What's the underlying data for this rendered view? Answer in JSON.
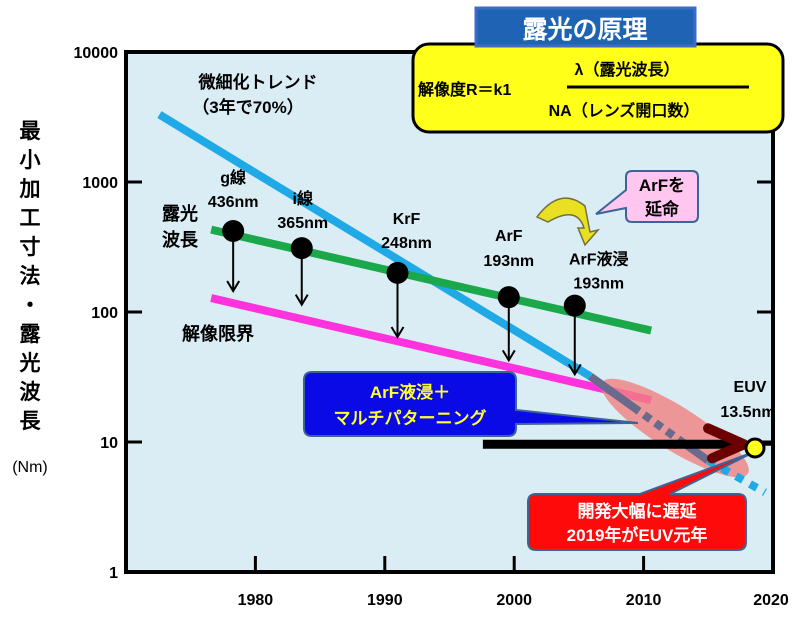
{
  "chart_data": {
    "type": "line",
    "title": "露光の原理",
    "formula": {
      "lhs": "解像度R＝k1",
      "numerator": "λ（露光波長）",
      "denominator": "NA（レンズ開口数）"
    },
    "ylabel_chars": [
      "最",
      "小",
      "加",
      "工",
      "寸",
      "法",
      "・",
      "露",
      "光",
      "波",
      "長"
    ],
    "ylabel_unit": "(Nm)",
    "yscale": "log",
    "ylim": [
      1,
      10000
    ],
    "xlim": [
      1970,
      2020
    ],
    "y_ticks": [
      {
        "value": 10000,
        "label": "10000"
      },
      {
        "value": 1000,
        "label": "1000"
      },
      {
        "value": 100,
        "label": "100"
      },
      {
        "value": 10,
        "label": "10"
      },
      {
        "value": 1,
        "label": "1"
      }
    ],
    "x_ticks": [
      {
        "value": 1980,
        "label": "1980"
      },
      {
        "value": 1990,
        "label": "1990"
      },
      {
        "value": 2000,
        "label": "2000"
      },
      {
        "value": 2010,
        "label": "2010"
      },
      {
        "value": 2020,
        "label": "2020"
      }
    ],
    "series": [
      {
        "name": "微細化トレンド（3年で70%）",
        "color": "#1fa9e6",
        "points": [
          [
            1973.2,
            3300
          ],
          [
            2006.5,
            32
          ]
        ],
        "extension_dashed": [
          [
            2006.5,
            32
          ],
          [
            2015.6,
            7.2
          ]
        ],
        "extension_dotted": [
          [
            2015.6,
            7.2
          ],
          [
            2020,
            4.1
          ]
        ]
      },
      {
        "name": "露光波長",
        "color": "#1aa84a",
        "points": [
          [
            1977.2,
            430
          ],
          [
            2011.2,
            72
          ]
        ]
      },
      {
        "name": "解像限界",
        "color": "#ff33dd",
        "points": [
          [
            1977.2,
            128
          ],
          [
            2011.2,
            21
          ]
        ]
      }
    ],
    "light_sources": [
      {
        "name": "g線",
        "wavelength": "436nm",
        "year": 1978.9,
        "value": 420,
        "limit": 140
      },
      {
        "name": "i線",
        "wavelength": "365nm",
        "year": 1984.2,
        "value": 310,
        "limit": 110
      },
      {
        "name": "KrF",
        "wavelength": "248nm",
        "year": 1991.6,
        "value": 200,
        "limit": 62
      },
      {
        "name": "ArF",
        "wavelength": "193nm",
        "year": 2000.2,
        "value": 130,
        "limit": 41
      },
      {
        "name": "ArF液浸",
        "wavelength": "193nm",
        "year": 2005.3,
        "value": 112,
        "limit": 32
      }
    ],
    "euv": {
      "name": "EUV",
      "wavelength": "13.5nm",
      "year": 2018.2,
      "value": 9.6,
      "line_start_year": 1998.2
    },
    "annotations": {
      "trend_line1": "微細化トレンド",
      "trend_line2": "（3年で70%）",
      "wavelength_label1": "露光",
      "wavelength_label2": "波長",
      "limit_label": "解像限界",
      "extend_arf_line1": "ArFを",
      "extend_arf_line2": "延命",
      "multi_patterning_line1": "ArF液浸＋",
      "multi_patterning_line2": "マルチパターニング",
      "delay_line1": "開発大幅に遅延",
      "delay_line2": "2019年がEUV元年"
    },
    "colors": {
      "plot_bg": "#daedf4",
      "title_bg": "#1f64b4",
      "formula_bg": "#ffff1a",
      "callout_blue": "#0a0ae6",
      "callout_red": "#ff0a0a",
      "callout_pink": "#ffc6ef",
      "highlight_ellipse": "#f08080",
      "euv_dot": "#ffff1a"
    }
  }
}
